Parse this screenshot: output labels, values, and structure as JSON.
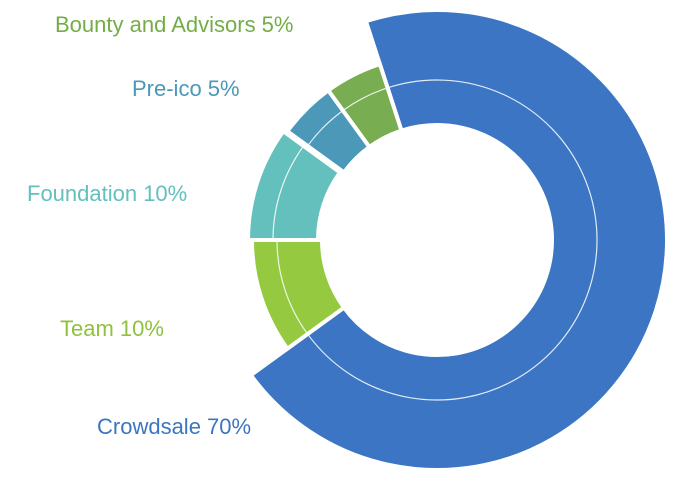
{
  "chart_data": {
    "type": "pie",
    "style": "donut",
    "categories": [
      "Crowdsale",
      "Team",
      "Foundation",
      "Pre-ico",
      "Bounty and Advisors"
    ],
    "values": [
      70,
      10,
      10,
      5,
      5
    ],
    "labels": [
      "Crowdsale 70%",
      "Team 10%",
      "Foundation 10%",
      "Pre-ico 5%",
      "Bounty and Advisors 5%"
    ],
    "colors": [
      "#3b75c3",
      "#94c940",
      "#63c0bc",
      "#4b98b8",
      "#79ad51"
    ],
    "label_colors": [
      "#3b75c3",
      "#8dc23d",
      "#63c0bc",
      "#4b98b8",
      "#74ad48"
    ]
  }
}
